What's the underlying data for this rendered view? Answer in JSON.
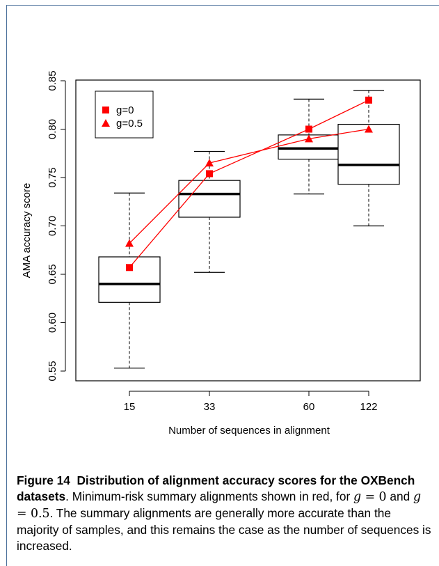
{
  "chart_data": {
    "type": "box",
    "xlabel": "Number of sequences in alignment",
    "ylabel": "AMA accuracy score",
    "categories": [
      "15",
      "33",
      "60",
      "122"
    ],
    "ylim": [
      0.545,
      0.85
    ],
    "yticks": [
      "0.55",
      "0.60",
      "0.65",
      "0.70",
      "0.75",
      "0.80",
      "0.85"
    ],
    "ytick_values": [
      0.55,
      0.6,
      0.65,
      0.7,
      0.75,
      0.8,
      0.85
    ],
    "boxes": [
      {
        "category": "15",
        "whisker_low": 0.553,
        "q1": 0.621,
        "median": 0.64,
        "q3": 0.668,
        "whisker_high": 0.734
      },
      {
        "category": "33",
        "whisker_low": 0.652,
        "q1": 0.709,
        "median": 0.733,
        "q3": 0.747,
        "whisker_high": 0.777
      },
      {
        "category": "60",
        "whisker_low": 0.733,
        "q1": 0.769,
        "median": 0.78,
        "q3": 0.794,
        "whisker_high": 0.831
      },
      {
        "category": "122",
        "whisker_low": 0.7,
        "q1": 0.743,
        "median": 0.763,
        "q3": 0.805,
        "whisker_high": 0.84
      }
    ],
    "series": [
      {
        "name": "g=0",
        "marker": "square",
        "color": "#ff0000",
        "values": [
          0.657,
          0.754,
          0.8,
          0.83
        ]
      },
      {
        "name": "g=0.5",
        "marker": "triangle",
        "color": "#ff0000",
        "values": [
          0.682,
          0.765,
          0.79,
          0.8
        ]
      }
    ],
    "legend_position": "top-left",
    "grid": false
  },
  "caption": {
    "label": "Figure 14",
    "title": "Distribution of alignment accuracy scores for the OXBench datasets",
    "text_part1": ". Minimum-risk summary alignments shown in red, for ",
    "g_symbol": "g",
    "eq_part1": " = 0",
    "and_text": " and ",
    "eq_part2": " = 0.5",
    "text_part2": ". The summary alignments are generally more accurate than the majority of samples, and this remains the case as the number of sequences is increased."
  }
}
